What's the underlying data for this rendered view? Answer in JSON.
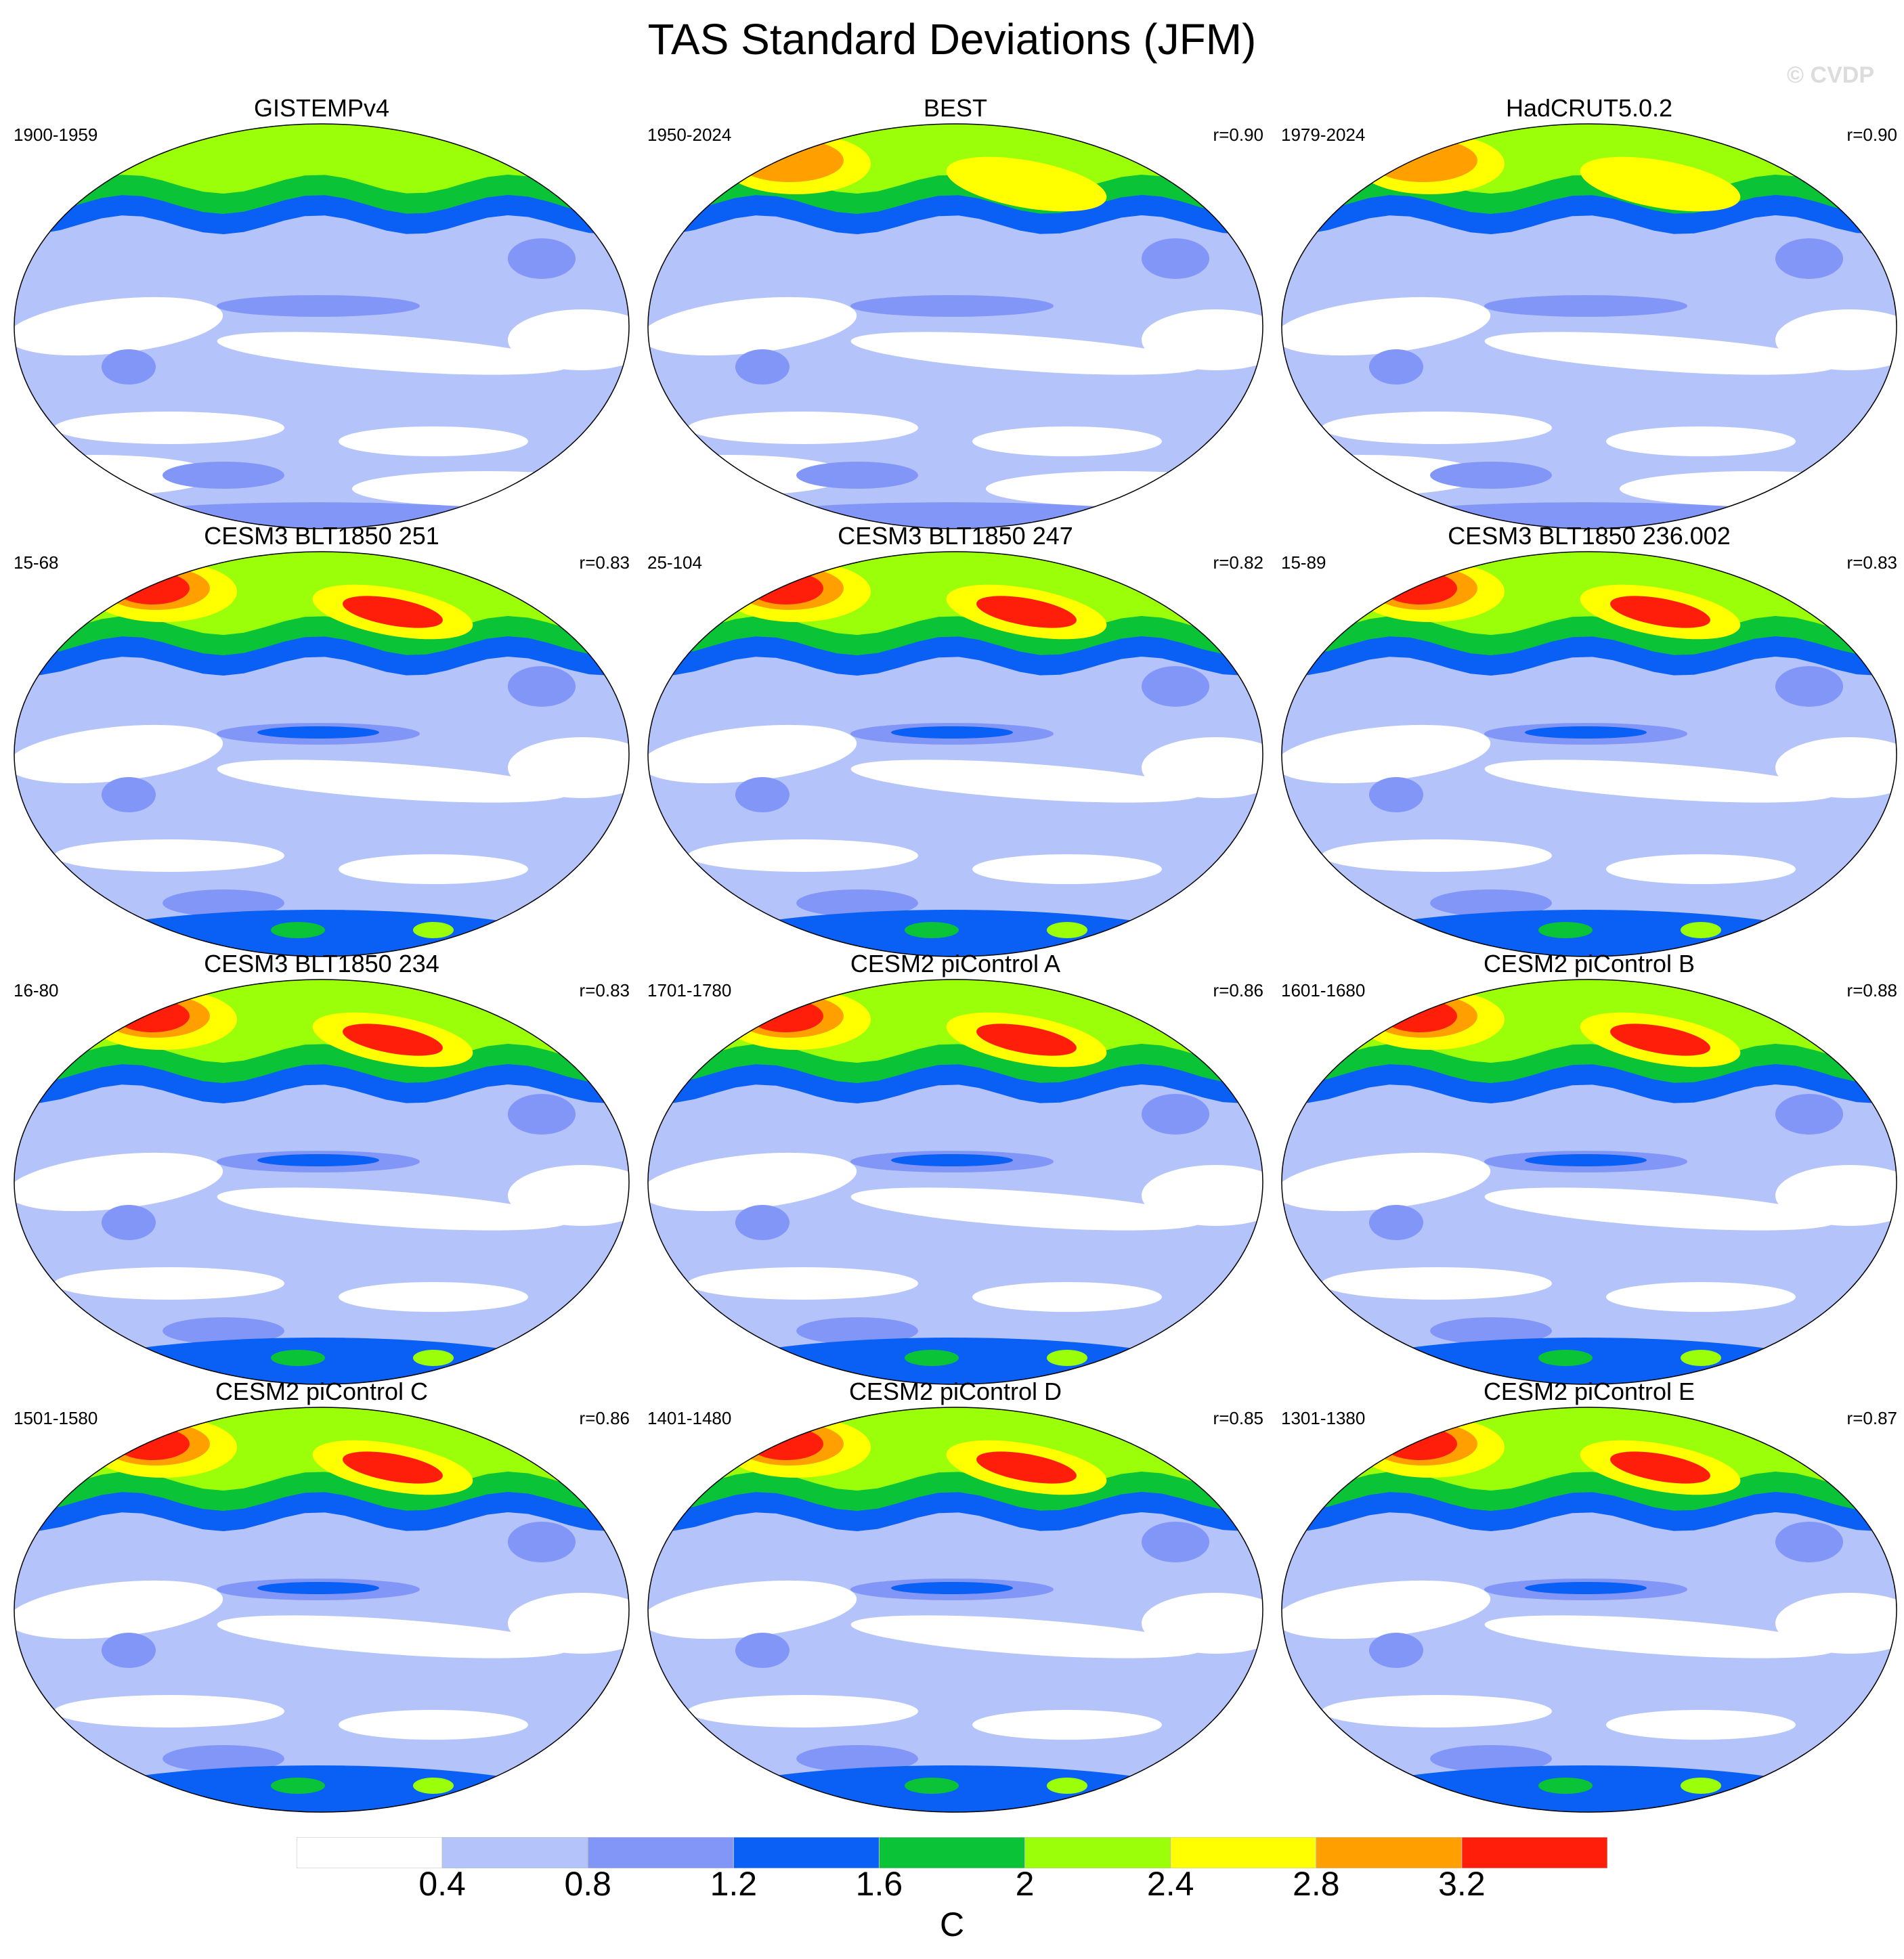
{
  "title": "TAS Standard Deviations (JFM)",
  "watermark": "© CVDP",
  "panels": [
    {
      "title": "GISTEMPv4",
      "period": "1900-1959",
      "corr": ""
    },
    {
      "title": "BEST",
      "period": "1950-2024",
      "corr": "r=0.90"
    },
    {
      "title": "HadCRUT5.0.2",
      "period": "1979-2024",
      "corr": "r=0.90"
    },
    {
      "title": "CESM3 BLT1850 251",
      "period": "15-68",
      "corr": "r=0.83"
    },
    {
      "title": "CESM3 BLT1850 247",
      "period": "25-104",
      "corr": "r=0.82"
    },
    {
      "title": "CESM3 BLT1850 236.002",
      "period": "15-89",
      "corr": "r=0.83"
    },
    {
      "title": "CESM3 BLT1850 234",
      "period": "16-80",
      "corr": "r=0.83"
    },
    {
      "title": "CESM2 piControl A",
      "period": "1701-1780",
      "corr": "r=0.86"
    },
    {
      "title": "CESM2 piControl B",
      "period": "1601-1680",
      "corr": "r=0.88"
    },
    {
      "title": "CESM2 piControl C",
      "period": "1501-1580",
      "corr": "r=0.86"
    },
    {
      "title": "CESM2 piControl D",
      "period": "1401-1480",
      "corr": "r=0.85"
    },
    {
      "title": "CESM2 piControl E",
      "period": "1301-1380",
      "corr": "r=0.87"
    }
  ],
  "colorbar": {
    "levels": [
      "0.4",
      "0.8",
      "1.2",
      "1.6",
      "2",
      "2.4",
      "2.8",
      "3.2"
    ],
    "colors": [
      "#ffffff",
      "#b4c3fa",
      "#8296f7",
      "#0a5ff5",
      "#0ac337",
      "#9bff0a",
      "#ffff00",
      "#ffa000",
      "#ff1e0a"
    ],
    "units": "C"
  }
}
